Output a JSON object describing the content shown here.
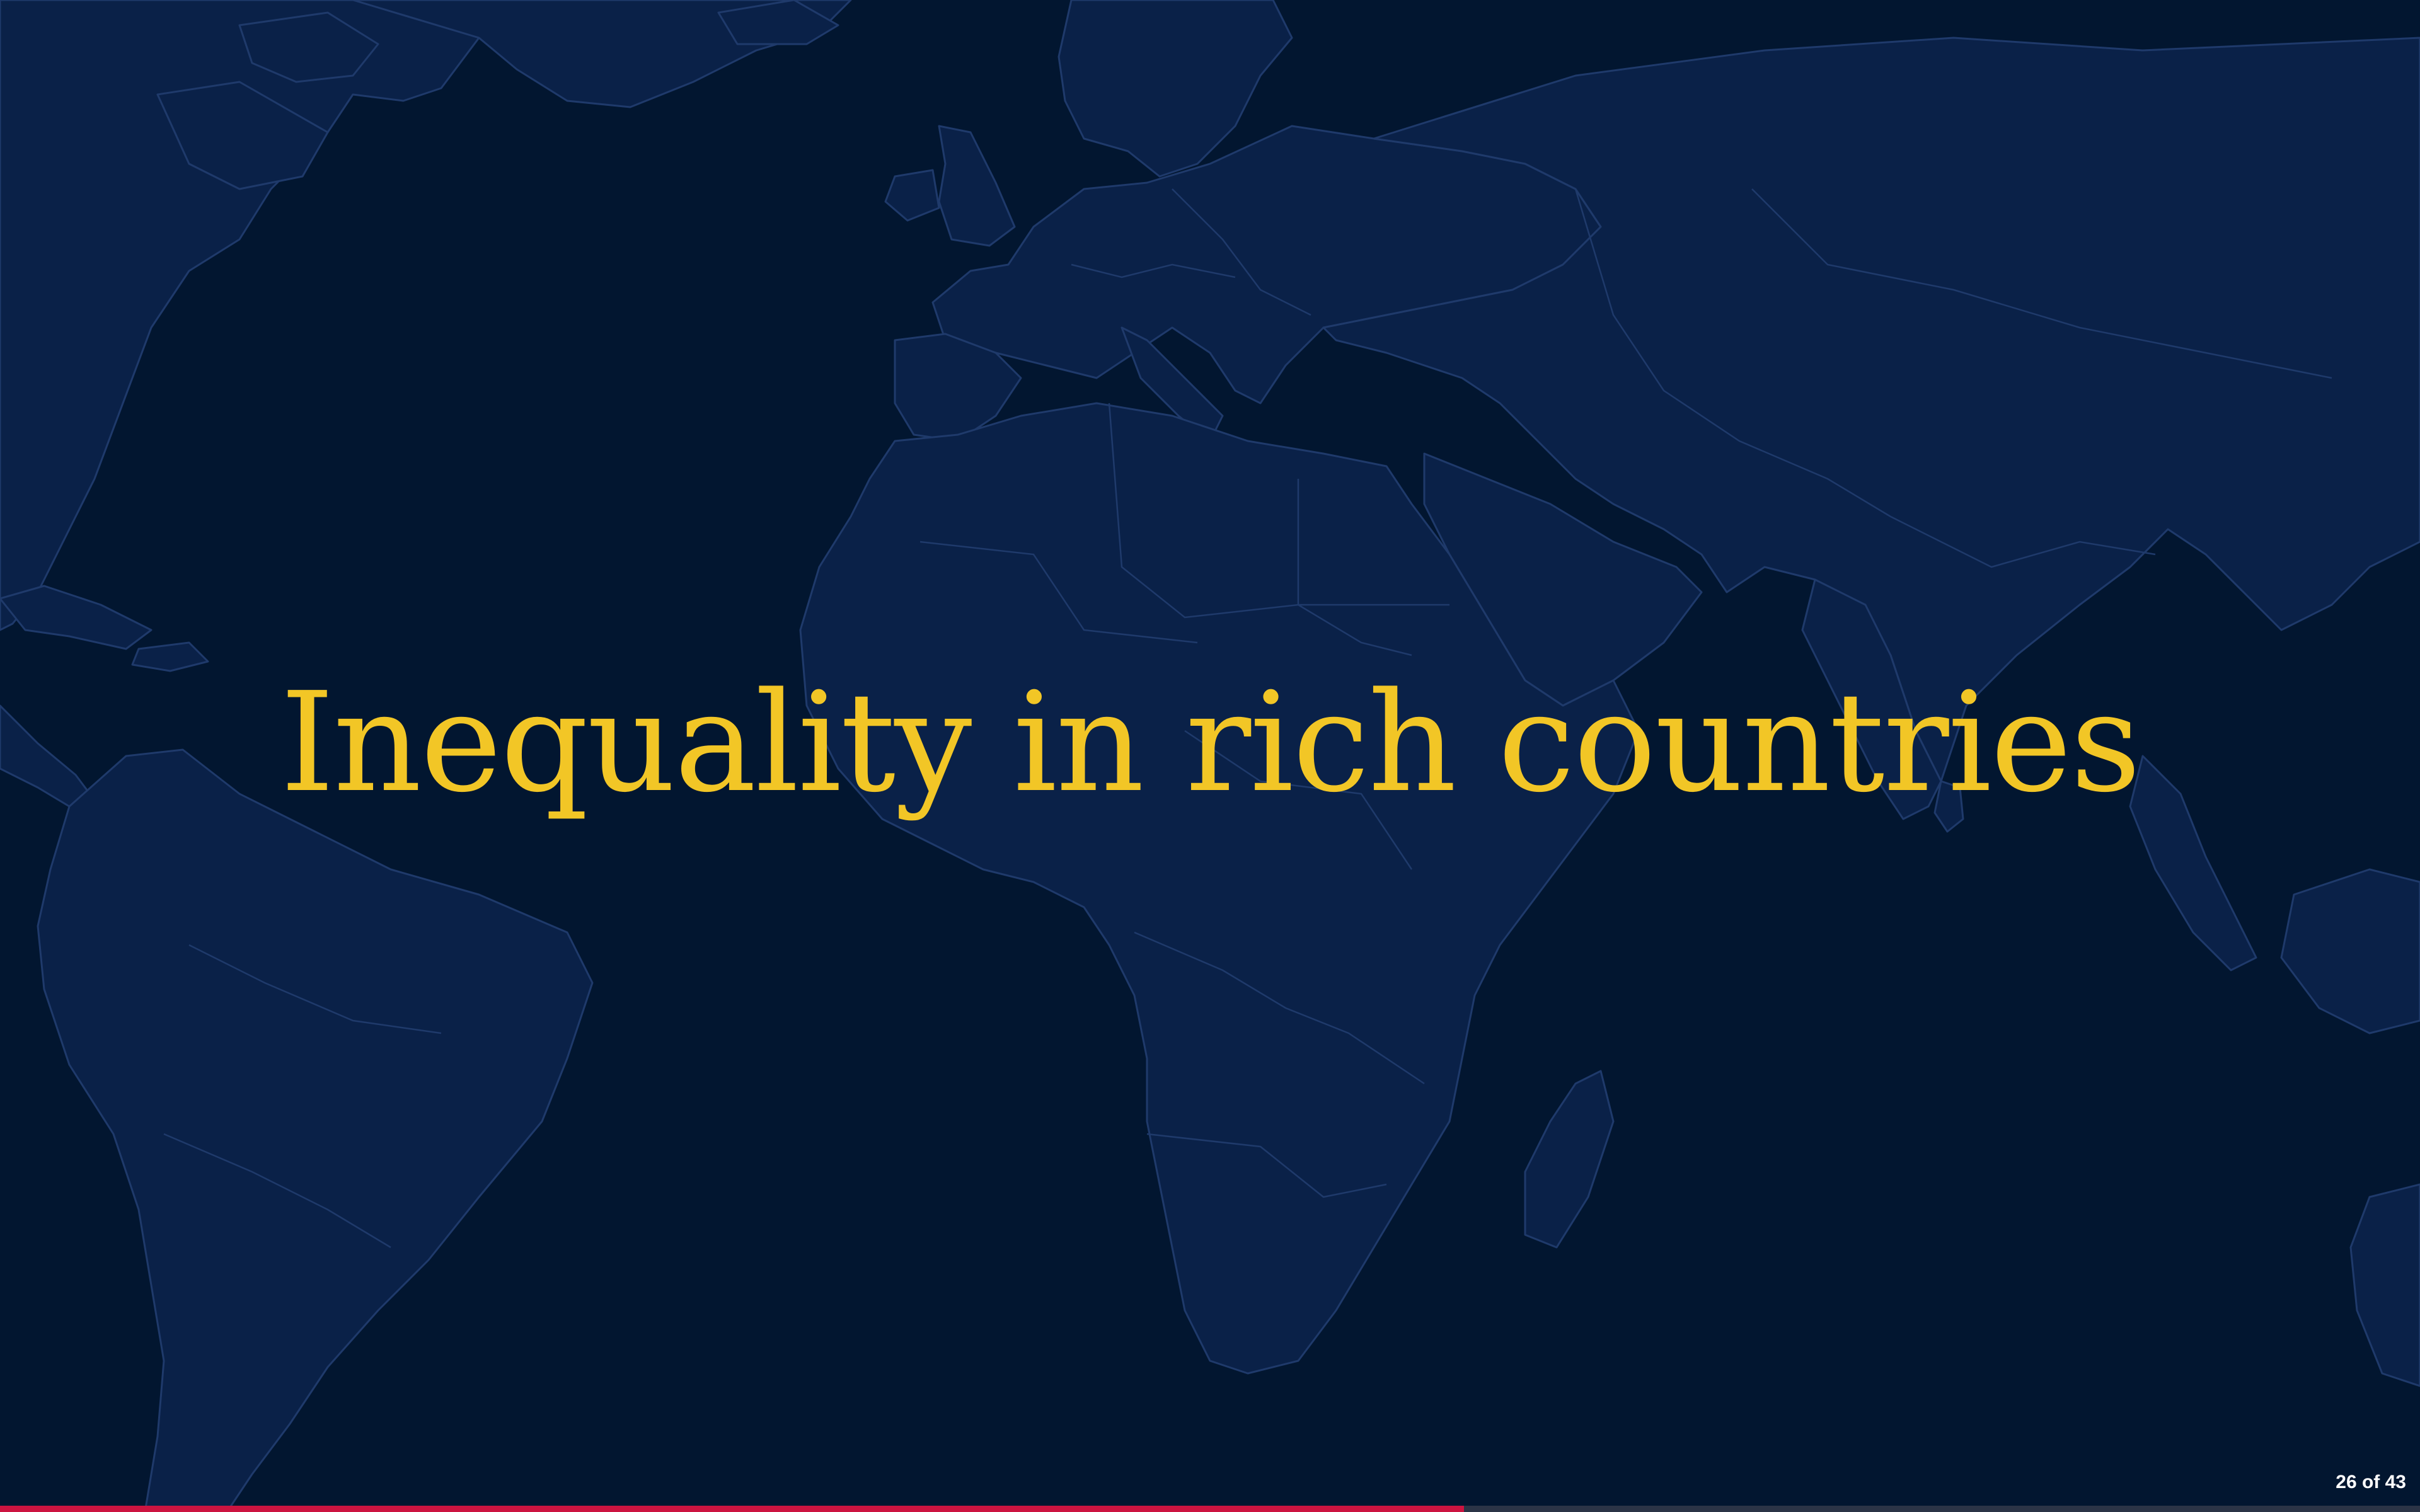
{
  "slide": {
    "title": "Inequality in rich countries",
    "page_counter": "26 of 43",
    "progress": 0.605
  },
  "colors": {
    "background": "#021630",
    "land": "#0a2148",
    "borders": "#1f3a6b",
    "title": "#f2c626",
    "progress_fill": "#cc1440",
    "progress_track": "#2b3446"
  },
  "icons": {
    "background_map": "world-map"
  }
}
